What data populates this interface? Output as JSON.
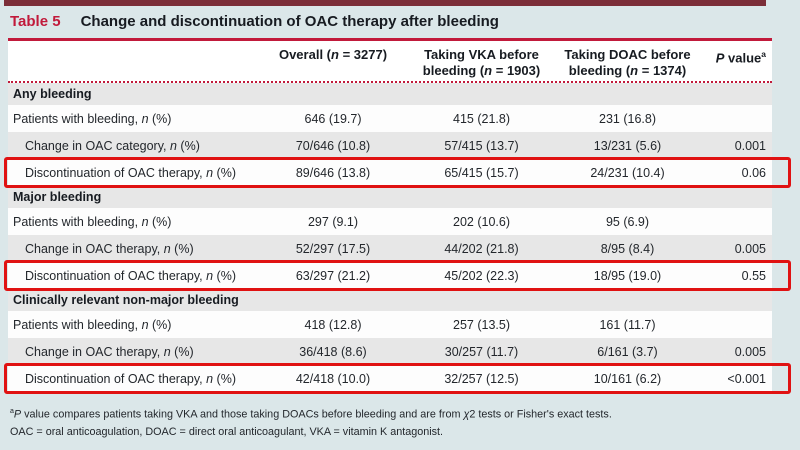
{
  "colors": {
    "page_background": "#dbe7e9",
    "top_bar_maroon": "#7b2e38",
    "accent_crimson": "#c11a3b",
    "section_row_gray": "#e7e7e7",
    "highlight_box_red": "#e01212"
  },
  "caption": {
    "label": "Table 5",
    "title": "Change and discontinuation of OAC therapy after bleeding"
  },
  "table": {
    "columns": [
      {
        "header": ""
      },
      {
        "header": "Overall (*n* = 3277)"
      },
      {
        "header": "Taking VKA before bleeding (*n* = 1903)"
      },
      {
        "header": "Taking DOAC before bleeding (*n* = 1374)"
      },
      {
        "header": "*P* value^a^"
      }
    ],
    "sections": [
      {
        "header": "Any bleeding",
        "rows": [
          {
            "label": "Patients with bleeding, *n* (%)",
            "indent": false,
            "highlight": false,
            "values": [
              "646 (19.7)",
              "415 (21.8)",
              "231 (16.8)",
              ""
            ]
          },
          {
            "label": "Change in OAC category, *n* (%)",
            "indent": true,
            "highlight": false,
            "values": [
              "70/646 (10.8)",
              "57/415 (13.7)",
              "13/231 (5.6)",
              "0.001"
            ]
          },
          {
            "label": "Discontinuation of OAC therapy, *n* (%)",
            "indent": true,
            "highlight": true,
            "values": [
              "89/646 (13.8)",
              "65/415 (15.7)",
              "24/231 (10.4)",
              "0.06"
            ]
          }
        ]
      },
      {
        "header": "Major bleeding",
        "rows": [
          {
            "label": "Patients with bleeding, *n* (%)",
            "indent": false,
            "highlight": false,
            "values": [
              "297 (9.1)",
              "202 (10.6)",
              "95 (6.9)",
              ""
            ]
          },
          {
            "label": "Change in OAC therapy, *n* (%)",
            "indent": true,
            "highlight": false,
            "values": [
              "52/297 (17.5)",
              "44/202 (21.8)",
              "8/95 (8.4)",
              "0.005"
            ]
          },
          {
            "label": "Discontinuation of OAC therapy, *n* (%)",
            "indent": true,
            "highlight": true,
            "values": [
              "63/297 (21.2)",
              "45/202 (22.3)",
              "18/95 (19.0)",
              "0.55"
            ]
          }
        ]
      },
      {
        "header": "Clinically relevant non-major bleeding",
        "rows": [
          {
            "label": "Patients with bleeding, *n* (%)",
            "indent": false,
            "highlight": false,
            "values": [
              "418 (12.8)",
              "257 (13.5)",
              "161 (11.7)",
              ""
            ]
          },
          {
            "label": "Change in OAC therapy, *n* (%)",
            "indent": true,
            "highlight": false,
            "values": [
              "36/418 (8.6)",
              "30/257 (11.7)",
              "6/161 (3.7)",
              "0.005"
            ]
          },
          {
            "label": "Discontinuation of OAC therapy, *n* (%)",
            "indent": true,
            "highlight": true,
            "values": [
              "42/418 (10.0)",
              "32/257 (12.5)",
              "10/161 (6.2)",
              "<0.001"
            ]
          }
        ]
      }
    ]
  },
  "footnotes": [
    "^a^*P* value compares patients taking VKA and those taking DOACs before bleeding and are from *χ*2 tests or Fisher's exact tests.",
    "OAC = oral anticoagulation, DOAC = direct oral anticoagulant, VKA = vitamin K antagonist."
  ]
}
